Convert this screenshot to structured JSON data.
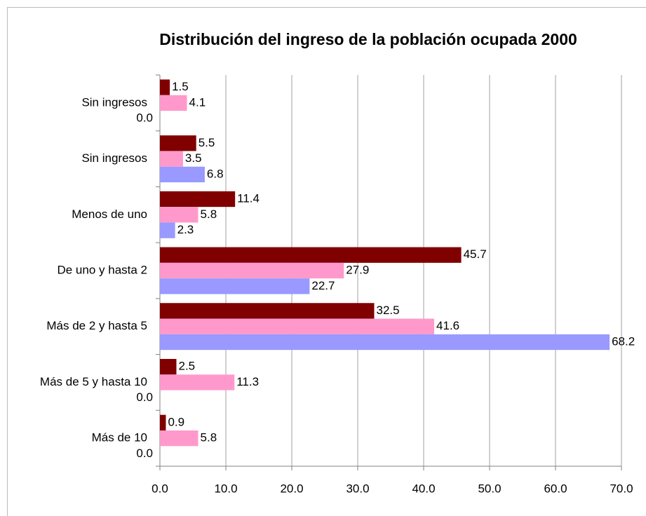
{
  "chart_data": {
    "type": "bar",
    "orientation": "horizontal",
    "title": "Distribución del ingreso de la población ocupada 2000",
    "categories": [
      "Sin ingresos",
      "Sin ingresos",
      "Menos de uno",
      "De uno y hasta 2",
      "Más de 2 y hasta 5",
      "Más de 5 y hasta 10",
      "Más de 10"
    ],
    "series": [
      {
        "color": "#800000",
        "values": [
          1.5,
          5.5,
          11.4,
          45.7,
          32.5,
          2.5,
          0.9
        ],
        "value_labels": [
          "1.5",
          "5.5",
          "11.4",
          "45.7",
          "32.5",
          "2.5",
          "0.9"
        ]
      },
      {
        "color": "#ff99cc",
        "values": [
          4.1,
          3.5,
          5.8,
          27.9,
          41.6,
          11.3,
          5.8
        ],
        "value_labels": [
          "4.1",
          "3.5",
          "5.8",
          "27.9",
          "41.6",
          "11.3",
          "5.8"
        ]
      },
      {
        "color": "#9999ff",
        "values": [
          0,
          6.8,
          2.3,
          22.7,
          68.2,
          0,
          0
        ],
        "value_labels": [
          "0.0",
          "6.8",
          "2.3",
          "22.7",
          "68.2",
          "0.0",
          "0.0"
        ]
      }
    ],
    "xlim": [
      0,
      70
    ],
    "xticks": [
      {
        "value": 0,
        "label": "0.0"
      },
      {
        "value": 10,
        "label": "10.0"
      },
      {
        "value": 20,
        "label": "20.0"
      },
      {
        "value": 30,
        "label": "30.0"
      },
      {
        "value": 40,
        "label": "40.0"
      },
      {
        "value": 50,
        "label": "50.0"
      },
      {
        "value": 60,
        "label": "60.0"
      },
      {
        "value": 70,
        "label": "70.0"
      }
    ],
    "grid": true
  }
}
